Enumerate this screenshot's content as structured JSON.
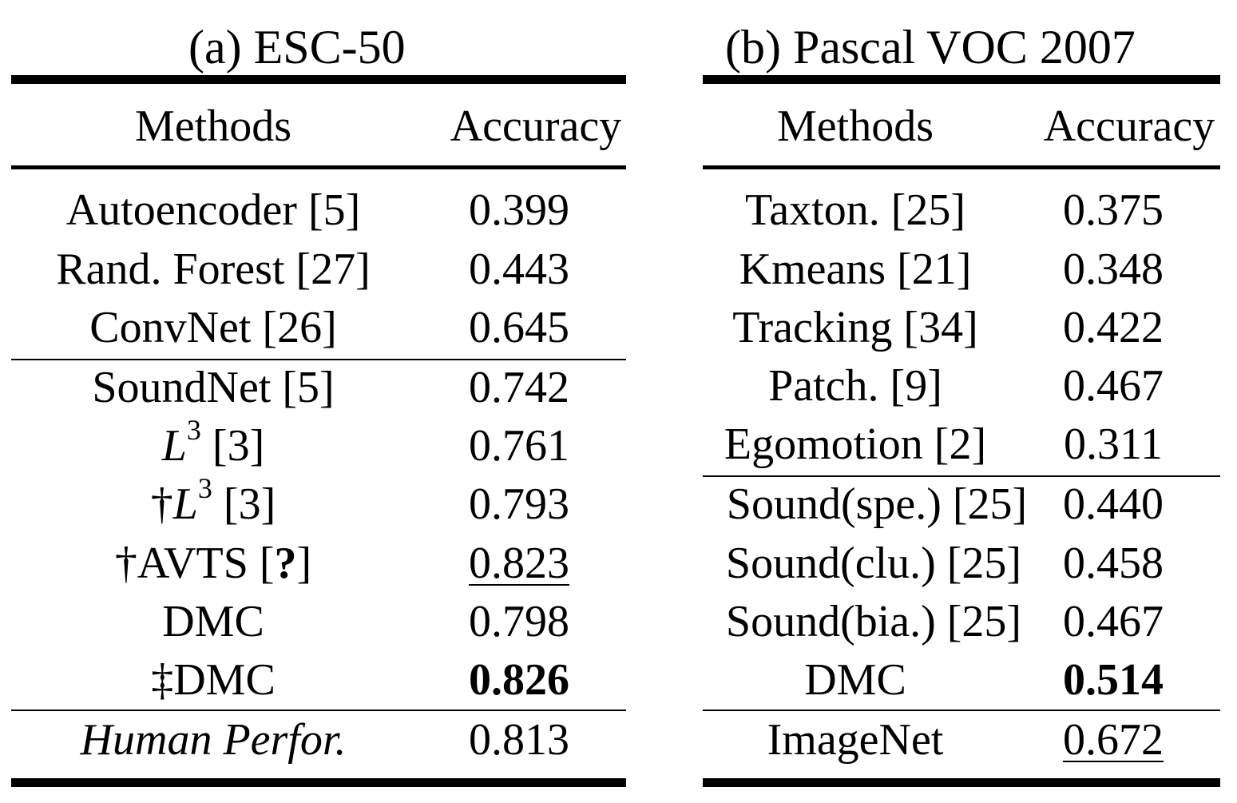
{
  "panel_a": {
    "caption": "(a) ESC-50",
    "header": {
      "methods": "Methods",
      "accuracy": "Accuracy"
    },
    "rows": [
      {
        "method": "Autoencoder [5]",
        "accuracy": "0.399"
      },
      {
        "method": "Rand. Forest [27]",
        "accuracy": "0.443"
      },
      {
        "method": "ConvNet [26]",
        "accuracy": "0.645"
      },
      {
        "method": "SoundNet [5]",
        "accuracy": "0.742"
      },
      {
        "method_prefix": "",
        "method_var": "L",
        "method_exp": "3",
        "method_suffix": " [3]",
        "accuracy": "0.761"
      },
      {
        "method_prefix": "†",
        "method_var": "L",
        "method_exp": "3",
        "method_suffix": " [3]",
        "accuracy": "0.793"
      },
      {
        "method_prefix": "†AVTS [",
        "method_bold": "?",
        "method_suffix": "]",
        "accuracy": "0.823"
      },
      {
        "method": "DMC",
        "accuracy": "0.798"
      },
      {
        "method": "‡DMC",
        "accuracy": "0.826"
      },
      {
        "method": "Human Perfor.",
        "accuracy": "0.813"
      }
    ]
  },
  "panel_b": {
    "caption": "(b) Pascal VOC 2007",
    "header": {
      "methods": "Methods",
      "accuracy": "Accuracy"
    },
    "rows": [
      {
        "method": "Taxton. [25]",
        "accuracy": "0.375"
      },
      {
        "method": "Kmeans [21]",
        "accuracy": "0.348"
      },
      {
        "method": "Tracking [34]",
        "accuracy": "0.422"
      },
      {
        "method": "Patch. [9]",
        "accuracy": "0.467"
      },
      {
        "method": "Egomotion [2]",
        "accuracy": "0.311"
      },
      {
        "method": "Sound(spe.) [25]",
        "accuracy": "0.440"
      },
      {
        "method": "Sound(clu.) [25]",
        "accuracy": "0.458"
      },
      {
        "method": "Sound(bia.) [25]",
        "accuracy": "0.467"
      },
      {
        "method": "DMC",
        "accuracy": "0.514"
      },
      {
        "method": "ImageNet",
        "accuracy": "0.672"
      }
    ]
  }
}
